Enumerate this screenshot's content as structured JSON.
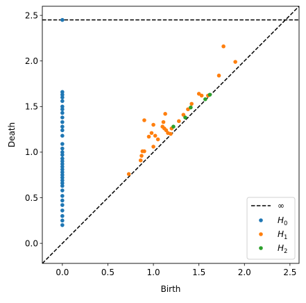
{
  "chart_data": {
    "type": "scatter",
    "title": "",
    "xlabel": "Birth",
    "ylabel": "Death",
    "xlim": [
      -0.22,
      2.6
    ],
    "ylim": [
      -0.22,
      2.6
    ],
    "x_ticks": [
      0.0,
      0.5,
      1.0,
      1.5,
      2.0,
      2.5
    ],
    "x_tick_labels": [
      "0.0",
      "0.5",
      "1.0",
      "1.5",
      "2.0",
      "2.5"
    ],
    "y_ticks": [
      0.0,
      0.5,
      1.0,
      1.5,
      2.0,
      2.5
    ],
    "y_tick_labels": [
      "0.0",
      "0.5",
      "1.0",
      "1.5",
      "2.0",
      "2.5"
    ],
    "grid": false,
    "legend_position": "bottom-right",
    "infinity_line": {
      "label": "∞",
      "y": 2.45,
      "color": "#000000",
      "style": "dashed"
    },
    "diagonal": {
      "color": "#000000",
      "style": "dashed"
    },
    "series": [
      {
        "name": "H0",
        "color": "#1f77b4",
        "points": [
          [
            0,
            2.45
          ],
          [
            0,
            1.66
          ],
          [
            0,
            1.63
          ],
          [
            0,
            1.6
          ],
          [
            0,
            1.56
          ],
          [
            0,
            1.5
          ],
          [
            0,
            1.47
          ],
          [
            0,
            1.43
          ],
          [
            0,
            1.38
          ],
          [
            0,
            1.33
          ],
          [
            0,
            1.28
          ],
          [
            0,
            1.24
          ],
          [
            0,
            1.18
          ],
          [
            0,
            1.09
          ],
          [
            0,
            1.04
          ],
          [
            0,
            1.0
          ],
          [
            0,
            0.97
          ],
          [
            0,
            0.93
          ],
          [
            0,
            0.9
          ],
          [
            0,
            0.87
          ],
          [
            0,
            0.84
          ],
          [
            0,
            0.81
          ],
          [
            0,
            0.78
          ],
          [
            0,
            0.75
          ],
          [
            0,
            0.72
          ],
          [
            0,
            0.69
          ],
          [
            0,
            0.66
          ],
          [
            0,
            0.63
          ],
          [
            0,
            0.58
          ],
          [
            0,
            0.52
          ],
          [
            0,
            0.47
          ],
          [
            0,
            0.42
          ],
          [
            0,
            0.36
          ],
          [
            0,
            0.3
          ],
          [
            0,
            0.25
          ],
          [
            0,
            0.2
          ]
        ]
      },
      {
        "name": "H1",
        "color": "#ff7f0e",
        "points": [
          [
            0.73,
            0.76
          ],
          [
            0.86,
            0.91
          ],
          [
            0.87,
            0.96
          ],
          [
            0.88,
            1.01
          ],
          [
            0.9,
            1.01
          ],
          [
            0.9,
            1.35
          ],
          [
            0.95,
            1.17
          ],
          [
            0.98,
            1.21
          ],
          [
            1.0,
            1.06
          ],
          [
            1.0,
            1.3
          ],
          [
            1.02,
            1.18
          ],
          [
            1.05,
            1.14
          ],
          [
            1.1,
            1.28
          ],
          [
            1.11,
            1.33
          ],
          [
            1.12,
            1.26
          ],
          [
            1.13,
            1.42
          ],
          [
            1.14,
            1.24
          ],
          [
            1.16,
            1.21
          ],
          [
            1.19,
            1.2
          ],
          [
            1.2,
            1.26
          ],
          [
            1.28,
            1.34
          ],
          [
            1.33,
            1.41
          ],
          [
            1.38,
            1.47
          ],
          [
            1.42,
            1.53
          ],
          [
            1.5,
            1.64
          ],
          [
            1.53,
            1.62
          ],
          [
            1.6,
            1.62
          ],
          [
            1.72,
            1.84
          ],
          [
            1.77,
            2.16
          ],
          [
            1.9,
            1.99
          ]
        ]
      },
      {
        "name": "H2",
        "color": "#2ca02c",
        "points": [
          [
            1.22,
            1.28
          ],
          [
            1.35,
            1.38
          ],
          [
            1.41,
            1.49
          ],
          [
            1.57,
            1.58
          ],
          [
            1.62,
            1.63
          ]
        ]
      }
    ]
  },
  "legend": {
    "infinity_label": "∞",
    "items": [
      {
        "main": "H",
        "sub": "0",
        "color": "#1f77b4"
      },
      {
        "main": "H",
        "sub": "1",
        "color": "#ff7f0e"
      },
      {
        "main": "H",
        "sub": "2",
        "color": "#2ca02c"
      }
    ]
  }
}
